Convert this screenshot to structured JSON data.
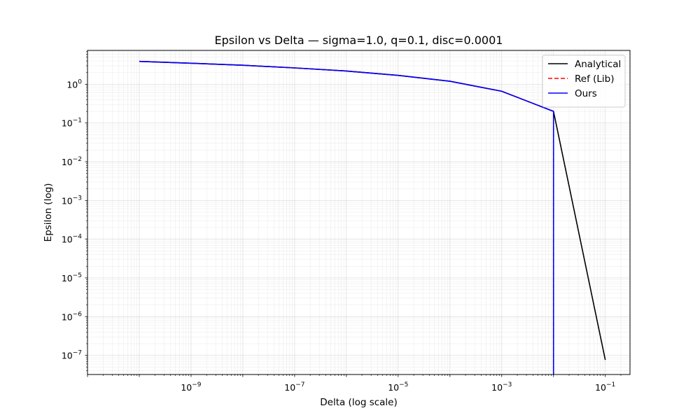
{
  "chart_data": {
    "type": "line",
    "title": "Epsilon vs Delta — sigma=1.0, q=0.1, disc=0.0001",
    "xlabel": "Delta (log scale)",
    "ylabel": "Epsilon (log)",
    "xscale": "log",
    "yscale": "log",
    "xlim": [
      1e-11,
      0.3
    ],
    "ylim": [
      3.2e-08,
      7.5
    ],
    "grid": true,
    "legend_position": "top-right",
    "x_ticks": [
      {
        "value": 1e-09,
        "base": "10",
        "exp": "−9"
      },
      {
        "value": 1e-07,
        "base": "10",
        "exp": "−7"
      },
      {
        "value": 1e-05,
        "base": "10",
        "exp": "−5"
      },
      {
        "value": 0.001,
        "base": "10",
        "exp": "−3"
      },
      {
        "value": 0.1,
        "base": "10",
        "exp": "−1"
      }
    ],
    "y_ticks": [
      {
        "value": 1,
        "base": "10",
        "exp": "0"
      },
      {
        "value": 0.1,
        "base": "10",
        "exp": "−1"
      },
      {
        "value": 0.01,
        "base": "10",
        "exp": "−2"
      },
      {
        "value": 0.001,
        "base": "10",
        "exp": "−3"
      },
      {
        "value": 0.0001,
        "base": "10",
        "exp": "−4"
      },
      {
        "value": 1e-05,
        "base": "10",
        "exp": "−5"
      },
      {
        "value": 1e-06,
        "base": "10",
        "exp": "−6"
      },
      {
        "value": 1e-07,
        "base": "10",
        "exp": "−7"
      }
    ],
    "series": [
      {
        "name": "Analytical",
        "color": "#000000",
        "dash": "solid",
        "points": [
          {
            "x": 1e-10,
            "y": 3.9
          },
          {
            "x": 1e-09,
            "y": 3.5
          },
          {
            "x": 1e-08,
            "y": 3.1
          },
          {
            "x": 1e-07,
            "y": 2.65
          },
          {
            "x": 1e-06,
            "y": 2.2
          },
          {
            "x": 1e-05,
            "y": 1.7
          },
          {
            "x": 0.0001,
            "y": 1.2
          },
          {
            "x": 0.001,
            "y": 0.66
          },
          {
            "x": 0.01,
            "y": 0.2
          },
          {
            "x": 0.1,
            "y": 7.6e-08
          }
        ]
      },
      {
        "name": "Ref (Lib)",
        "color": "#ff0000",
        "dash": "dashed",
        "points": [
          {
            "x": 1e-10,
            "y": 3.9
          },
          {
            "x": 1e-09,
            "y": 3.5
          },
          {
            "x": 1e-08,
            "y": 3.1
          },
          {
            "x": 1e-07,
            "y": 2.65
          },
          {
            "x": 1e-06,
            "y": 2.2
          },
          {
            "x": 1e-05,
            "y": 1.7
          },
          {
            "x": 0.0001,
            "y": 1.2
          },
          {
            "x": 0.001,
            "y": 0.66
          },
          {
            "x": 0.01,
            "y": 0.2
          },
          {
            "x": 0.01,
            "y": 1e-12
          }
        ]
      },
      {
        "name": "Ours",
        "color": "#0000ff",
        "dash": "solid",
        "points": [
          {
            "x": 1e-10,
            "y": 3.9
          },
          {
            "x": 1e-09,
            "y": 3.5
          },
          {
            "x": 1e-08,
            "y": 3.1
          },
          {
            "x": 1e-07,
            "y": 2.65
          },
          {
            "x": 1e-06,
            "y": 2.2
          },
          {
            "x": 1e-05,
            "y": 1.7
          },
          {
            "x": 0.0001,
            "y": 1.2
          },
          {
            "x": 0.001,
            "y": 0.66
          },
          {
            "x": 0.01,
            "y": 0.2
          },
          {
            "x": 0.01,
            "y": 1e-12
          }
        ]
      }
    ]
  }
}
